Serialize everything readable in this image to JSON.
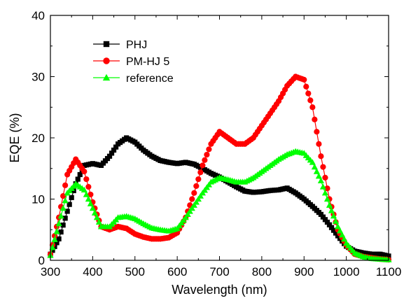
{
  "chart_data": {
    "type": "line",
    "xlabel": "Wavelength (nm)",
    "ylabel": "EQE (%)",
    "xlim": [
      300,
      1100
    ],
    "ylim": [
      0,
      40
    ],
    "x_ticks": [
      300,
      400,
      500,
      600,
      700,
      800,
      900,
      1000,
      1100
    ],
    "y_ticks": [
      0,
      10,
      20,
      30,
      40
    ],
    "x_tick_labels": [
      "300",
      "400",
      "500",
      "600",
      "700",
      "800",
      "900",
      "1000",
      "1100"
    ],
    "y_tick_labels": [
      "0",
      "10",
      "20",
      "30",
      "40"
    ],
    "grid": false,
    "legend_position": "top-left",
    "series": [
      {
        "name": "PHJ",
        "color": "#000000",
        "marker": "square",
        "x": [
          300,
          320,
          340,
          360,
          380,
          400,
          420,
          440,
          460,
          480,
          500,
          520,
          540,
          560,
          580,
          600,
          620,
          640,
          660,
          680,
          700,
          720,
          740,
          760,
          780,
          800,
          820,
          840,
          860,
          880,
          900,
          920,
          940,
          960,
          980,
          1000,
          1020,
          1040,
          1060,
          1080,
          1100
        ],
        "y": [
          1.0,
          3.5,
          8.0,
          12.5,
          15.5,
          15.8,
          15.5,
          17.0,
          19.0,
          20.0,
          19.3,
          18.0,
          17.0,
          16.3,
          16.0,
          15.8,
          16.0,
          15.7,
          15.0,
          14.2,
          13.6,
          12.8,
          12.0,
          11.3,
          11.1,
          11.2,
          11.4,
          11.5,
          11.8,
          11.0,
          10.0,
          8.8,
          7.5,
          5.8,
          4.0,
          2.3,
          1.5,
          1.2,
          1.0,
          1.0,
          0.7
        ]
      },
      {
        "name": "PM-HJ 5",
        "color": "#ff0000",
        "marker": "circle",
        "x": [
          300,
          320,
          340,
          360,
          380,
          400,
          420,
          440,
          460,
          480,
          500,
          520,
          540,
          560,
          580,
          600,
          620,
          640,
          660,
          680,
          700,
          720,
          740,
          760,
          780,
          800,
          820,
          840,
          860,
          880,
          900,
          920,
          940,
          960,
          980,
          1000,
          1020,
          1040,
          1060,
          1080,
          1100
        ],
        "y": [
          1.0,
          7.0,
          14.0,
          16.5,
          14.5,
          9.5,
          5.5,
          5.0,
          5.5,
          5.2,
          4.3,
          3.8,
          3.5,
          3.5,
          3.7,
          4.5,
          7.0,
          11.0,
          15.5,
          19.0,
          21.0,
          20.0,
          19.0,
          19.0,
          20.0,
          22.0,
          24.0,
          26.0,
          28.5,
          30.0,
          29.5,
          25.0,
          17.0,
          10.0,
          5.0,
          2.5,
          1.0,
          0.6,
          0.4,
          0.2,
          0.1
        ]
      },
      {
        "name": "reference",
        "color": "#00ff00",
        "marker": "triangle",
        "x": [
          300,
          320,
          340,
          360,
          380,
          400,
          420,
          440,
          460,
          480,
          500,
          520,
          540,
          560,
          580,
          600,
          620,
          640,
          660,
          680,
          700,
          720,
          740,
          760,
          780,
          800,
          820,
          840,
          860,
          880,
          900,
          920,
          940,
          960,
          980,
          1000,
          1020,
          1040,
          1060,
          1080,
          1100
        ],
        "y": [
          0.8,
          6.0,
          11.0,
          12.5,
          11.5,
          8.5,
          5.5,
          5.5,
          7.0,
          7.2,
          6.8,
          6.0,
          5.3,
          5.0,
          4.8,
          5.2,
          7.0,
          9.0,
          11.0,
          12.8,
          13.5,
          13.2,
          12.8,
          12.8,
          13.5,
          14.5,
          15.5,
          16.5,
          17.3,
          17.8,
          17.5,
          16.0,
          13.0,
          9.0,
          5.5,
          2.8,
          1.2,
          0.6,
          0.3,
          0.2,
          0.1
        ]
      }
    ]
  }
}
